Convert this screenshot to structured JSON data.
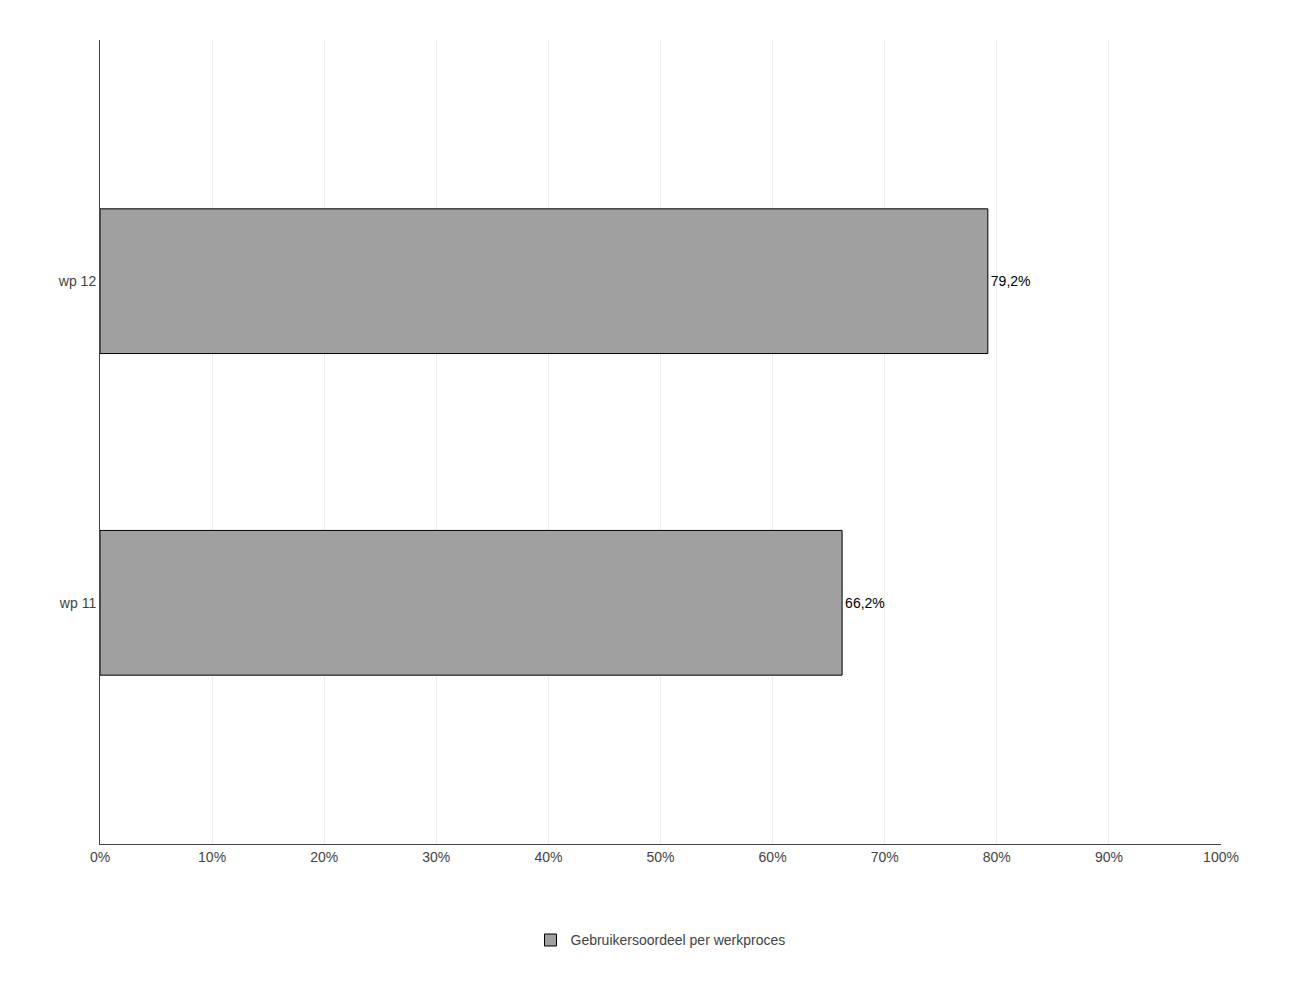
{
  "chart_data": {
    "type": "bar",
    "orientation": "horizontal",
    "categories": [
      "wp 11",
      "wp 12"
    ],
    "series": [
      {
        "name": "Gebruikersoordeel per werkproces",
        "color": "#a0a0a0",
        "values": [
          0.662,
          0.792
        ],
        "value_labels": [
          "66,2%",
          "79,2%"
        ]
      }
    ],
    "data_labels": true,
    "xlim": [
      0,
      1.0
    ],
    "xticks": [
      {
        "value": 0.0,
        "label": "0%"
      },
      {
        "value": 0.1,
        "label": "10%"
      },
      {
        "value": 0.2,
        "label": "20%"
      },
      {
        "value": 0.3,
        "label": "30%"
      },
      {
        "value": 0.4,
        "label": "40%"
      },
      {
        "value": 0.5,
        "label": "50%"
      },
      {
        "value": 0.6,
        "label": "60%"
      },
      {
        "value": 0.7,
        "label": "70%"
      },
      {
        "value": 0.8,
        "label": "80%"
      },
      {
        "value": 0.9,
        "label": "90%"
      },
      {
        "value": 1.0,
        "label": "100%"
      }
    ],
    "grid": true,
    "legend": "bottom"
  }
}
